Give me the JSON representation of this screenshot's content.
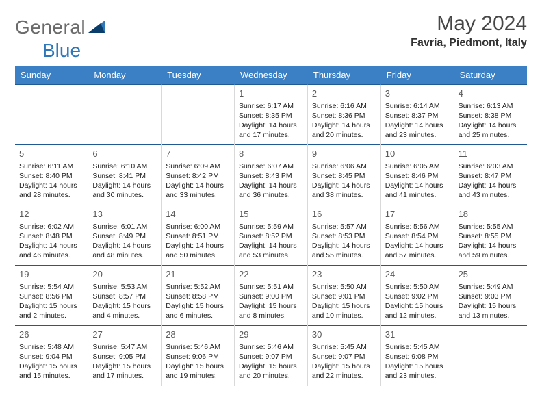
{
  "logo": {
    "part1": "General",
    "part2": "Blue"
  },
  "header": {
    "month_year": "May 2024",
    "location": "Favria, Piedmont, Italy"
  },
  "colors": {
    "header_bg": "#3b7fc4",
    "header_text": "#ffffff",
    "row_border": "#1f5a94",
    "cell_border": "#d9d9d9",
    "logo_gray": "#6b6b6b",
    "logo_blue": "#2f77b8",
    "title_gray": "#474747"
  },
  "day_headers": [
    "Sunday",
    "Monday",
    "Tuesday",
    "Wednesday",
    "Thursday",
    "Friday",
    "Saturday"
  ],
  "weeks": [
    [
      {
        "num": "",
        "sunrise": "",
        "sunset": "",
        "daylight": ""
      },
      {
        "num": "",
        "sunrise": "",
        "sunset": "",
        "daylight": ""
      },
      {
        "num": "",
        "sunrise": "",
        "sunset": "",
        "daylight": ""
      },
      {
        "num": "1",
        "sunrise": "6:17 AM",
        "sunset": "8:35 PM",
        "daylight": "14 hours and 17 minutes."
      },
      {
        "num": "2",
        "sunrise": "6:16 AM",
        "sunset": "8:36 PM",
        "daylight": "14 hours and 20 minutes."
      },
      {
        "num": "3",
        "sunrise": "6:14 AM",
        "sunset": "8:37 PM",
        "daylight": "14 hours and 23 minutes."
      },
      {
        "num": "4",
        "sunrise": "6:13 AM",
        "sunset": "8:38 PM",
        "daylight": "14 hours and 25 minutes."
      }
    ],
    [
      {
        "num": "5",
        "sunrise": "6:11 AM",
        "sunset": "8:40 PM",
        "daylight": "14 hours and 28 minutes."
      },
      {
        "num": "6",
        "sunrise": "6:10 AM",
        "sunset": "8:41 PM",
        "daylight": "14 hours and 30 minutes."
      },
      {
        "num": "7",
        "sunrise": "6:09 AM",
        "sunset": "8:42 PM",
        "daylight": "14 hours and 33 minutes."
      },
      {
        "num": "8",
        "sunrise": "6:07 AM",
        "sunset": "8:43 PM",
        "daylight": "14 hours and 36 minutes."
      },
      {
        "num": "9",
        "sunrise": "6:06 AM",
        "sunset": "8:45 PM",
        "daylight": "14 hours and 38 minutes."
      },
      {
        "num": "10",
        "sunrise": "6:05 AM",
        "sunset": "8:46 PM",
        "daylight": "14 hours and 41 minutes."
      },
      {
        "num": "11",
        "sunrise": "6:03 AM",
        "sunset": "8:47 PM",
        "daylight": "14 hours and 43 minutes."
      }
    ],
    [
      {
        "num": "12",
        "sunrise": "6:02 AM",
        "sunset": "8:48 PM",
        "daylight": "14 hours and 46 minutes."
      },
      {
        "num": "13",
        "sunrise": "6:01 AM",
        "sunset": "8:49 PM",
        "daylight": "14 hours and 48 minutes."
      },
      {
        "num": "14",
        "sunrise": "6:00 AM",
        "sunset": "8:51 PM",
        "daylight": "14 hours and 50 minutes."
      },
      {
        "num": "15",
        "sunrise": "5:59 AM",
        "sunset": "8:52 PM",
        "daylight": "14 hours and 53 minutes."
      },
      {
        "num": "16",
        "sunrise": "5:57 AM",
        "sunset": "8:53 PM",
        "daylight": "14 hours and 55 minutes."
      },
      {
        "num": "17",
        "sunrise": "5:56 AM",
        "sunset": "8:54 PM",
        "daylight": "14 hours and 57 minutes."
      },
      {
        "num": "18",
        "sunrise": "5:55 AM",
        "sunset": "8:55 PM",
        "daylight": "14 hours and 59 minutes."
      }
    ],
    [
      {
        "num": "19",
        "sunrise": "5:54 AM",
        "sunset": "8:56 PM",
        "daylight": "15 hours and 2 minutes."
      },
      {
        "num": "20",
        "sunrise": "5:53 AM",
        "sunset": "8:57 PM",
        "daylight": "15 hours and 4 minutes."
      },
      {
        "num": "21",
        "sunrise": "5:52 AM",
        "sunset": "8:58 PM",
        "daylight": "15 hours and 6 minutes."
      },
      {
        "num": "22",
        "sunrise": "5:51 AM",
        "sunset": "9:00 PM",
        "daylight": "15 hours and 8 minutes."
      },
      {
        "num": "23",
        "sunrise": "5:50 AM",
        "sunset": "9:01 PM",
        "daylight": "15 hours and 10 minutes."
      },
      {
        "num": "24",
        "sunrise": "5:50 AM",
        "sunset": "9:02 PM",
        "daylight": "15 hours and 12 minutes."
      },
      {
        "num": "25",
        "sunrise": "5:49 AM",
        "sunset": "9:03 PM",
        "daylight": "15 hours and 13 minutes."
      }
    ],
    [
      {
        "num": "26",
        "sunrise": "5:48 AM",
        "sunset": "9:04 PM",
        "daylight": "15 hours and 15 minutes."
      },
      {
        "num": "27",
        "sunrise": "5:47 AM",
        "sunset": "9:05 PM",
        "daylight": "15 hours and 17 minutes."
      },
      {
        "num": "28",
        "sunrise": "5:46 AM",
        "sunset": "9:06 PM",
        "daylight": "15 hours and 19 minutes."
      },
      {
        "num": "29",
        "sunrise": "5:46 AM",
        "sunset": "9:07 PM",
        "daylight": "15 hours and 20 minutes."
      },
      {
        "num": "30",
        "sunrise": "5:45 AM",
        "sunset": "9:07 PM",
        "daylight": "15 hours and 22 minutes."
      },
      {
        "num": "31",
        "sunrise": "5:45 AM",
        "sunset": "9:08 PM",
        "daylight": "15 hours and 23 minutes."
      },
      {
        "num": "",
        "sunrise": "",
        "sunset": "",
        "daylight": ""
      }
    ]
  ],
  "labels": {
    "sunrise": "Sunrise: ",
    "sunset": "Sunset: ",
    "daylight": "Daylight: "
  }
}
